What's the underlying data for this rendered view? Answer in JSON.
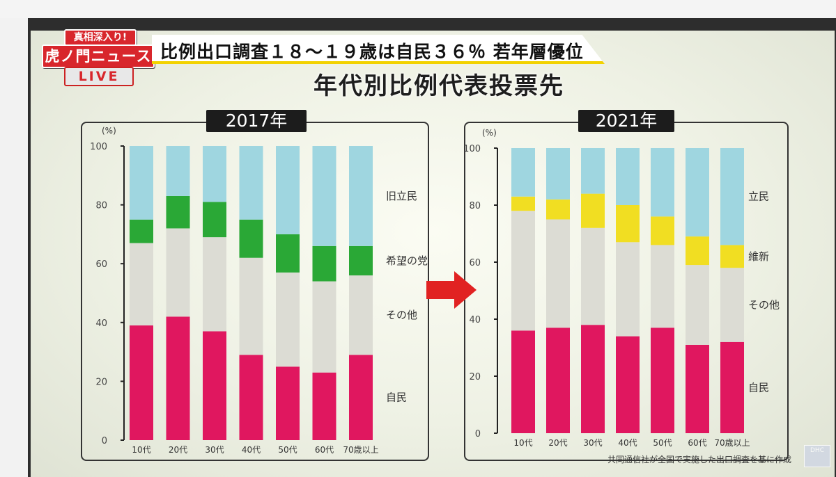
{
  "broadcast": {
    "logo_line1": "真相深入り!",
    "logo_line2": "虎ノ門ニュース",
    "logo_line3": "LIVE",
    "headline": "比例出口調査１８～１９歳は自民３６％ 若年層優位",
    "main_title": "年代別比例代表投票先",
    "source_note": "共同通信社が全国で実施した出口調査を基に作成",
    "channel_badge": "DHC"
  },
  "colors": {
    "jimin": "#e0175f",
    "other": "#dcdcd4",
    "kibou": "#2aa836",
    "ishin": "#f1de22",
    "rikken": "#9fd6e0",
    "arrow": "#e12222"
  },
  "chart_data": [
    {
      "type": "bar",
      "stacked": true,
      "year_label": "2017年",
      "unit_label": "(%)",
      "ylim": [
        0,
        100
      ],
      "yticks": [
        0,
        20,
        40,
        60,
        80,
        100
      ],
      "categories": [
        "10代",
        "20代",
        "30代",
        "40代",
        "50代",
        "60代",
        "70歳以上"
      ],
      "series": [
        {
          "name": "自民",
          "color_key": "jimin",
          "values": [
            39,
            42,
            37,
            29,
            25,
            23,
            29
          ]
        },
        {
          "name": "その他",
          "color_key": "other",
          "values": [
            28,
            30,
            32,
            33,
            32,
            31,
            27
          ]
        },
        {
          "name": "希望の党",
          "color_key": "kibou",
          "values": [
            8,
            11,
            12,
            13,
            13,
            12,
            10
          ]
        },
        {
          "name": "旧立民",
          "color_key": "rikken",
          "values": [
            25,
            17,
            19,
            25,
            30,
            34,
            34
          ]
        }
      ]
    },
    {
      "type": "bar",
      "stacked": true,
      "year_label": "2021年",
      "unit_label": "(%)",
      "ylim": [
        0,
        100
      ],
      "yticks": [
        0,
        20,
        40,
        60,
        80,
        100
      ],
      "categories": [
        "10代",
        "20代",
        "30代",
        "40代",
        "50代",
        "60代",
        "70歳以上"
      ],
      "series": [
        {
          "name": "自民",
          "color_key": "jimin",
          "values": [
            36,
            37,
            38,
            34,
            37,
            31,
            32
          ]
        },
        {
          "name": "その他",
          "color_key": "other",
          "values": [
            42,
            38,
            34,
            33,
            29,
            28,
            26
          ]
        },
        {
          "name": "維新",
          "color_key": "ishin",
          "values": [
            5,
            7,
            12,
            13,
            10,
            10,
            8
          ]
        },
        {
          "name": "立民",
          "color_key": "rikken",
          "values": [
            17,
            18,
            16,
            20,
            24,
            31,
            34
          ]
        }
      ]
    }
  ]
}
